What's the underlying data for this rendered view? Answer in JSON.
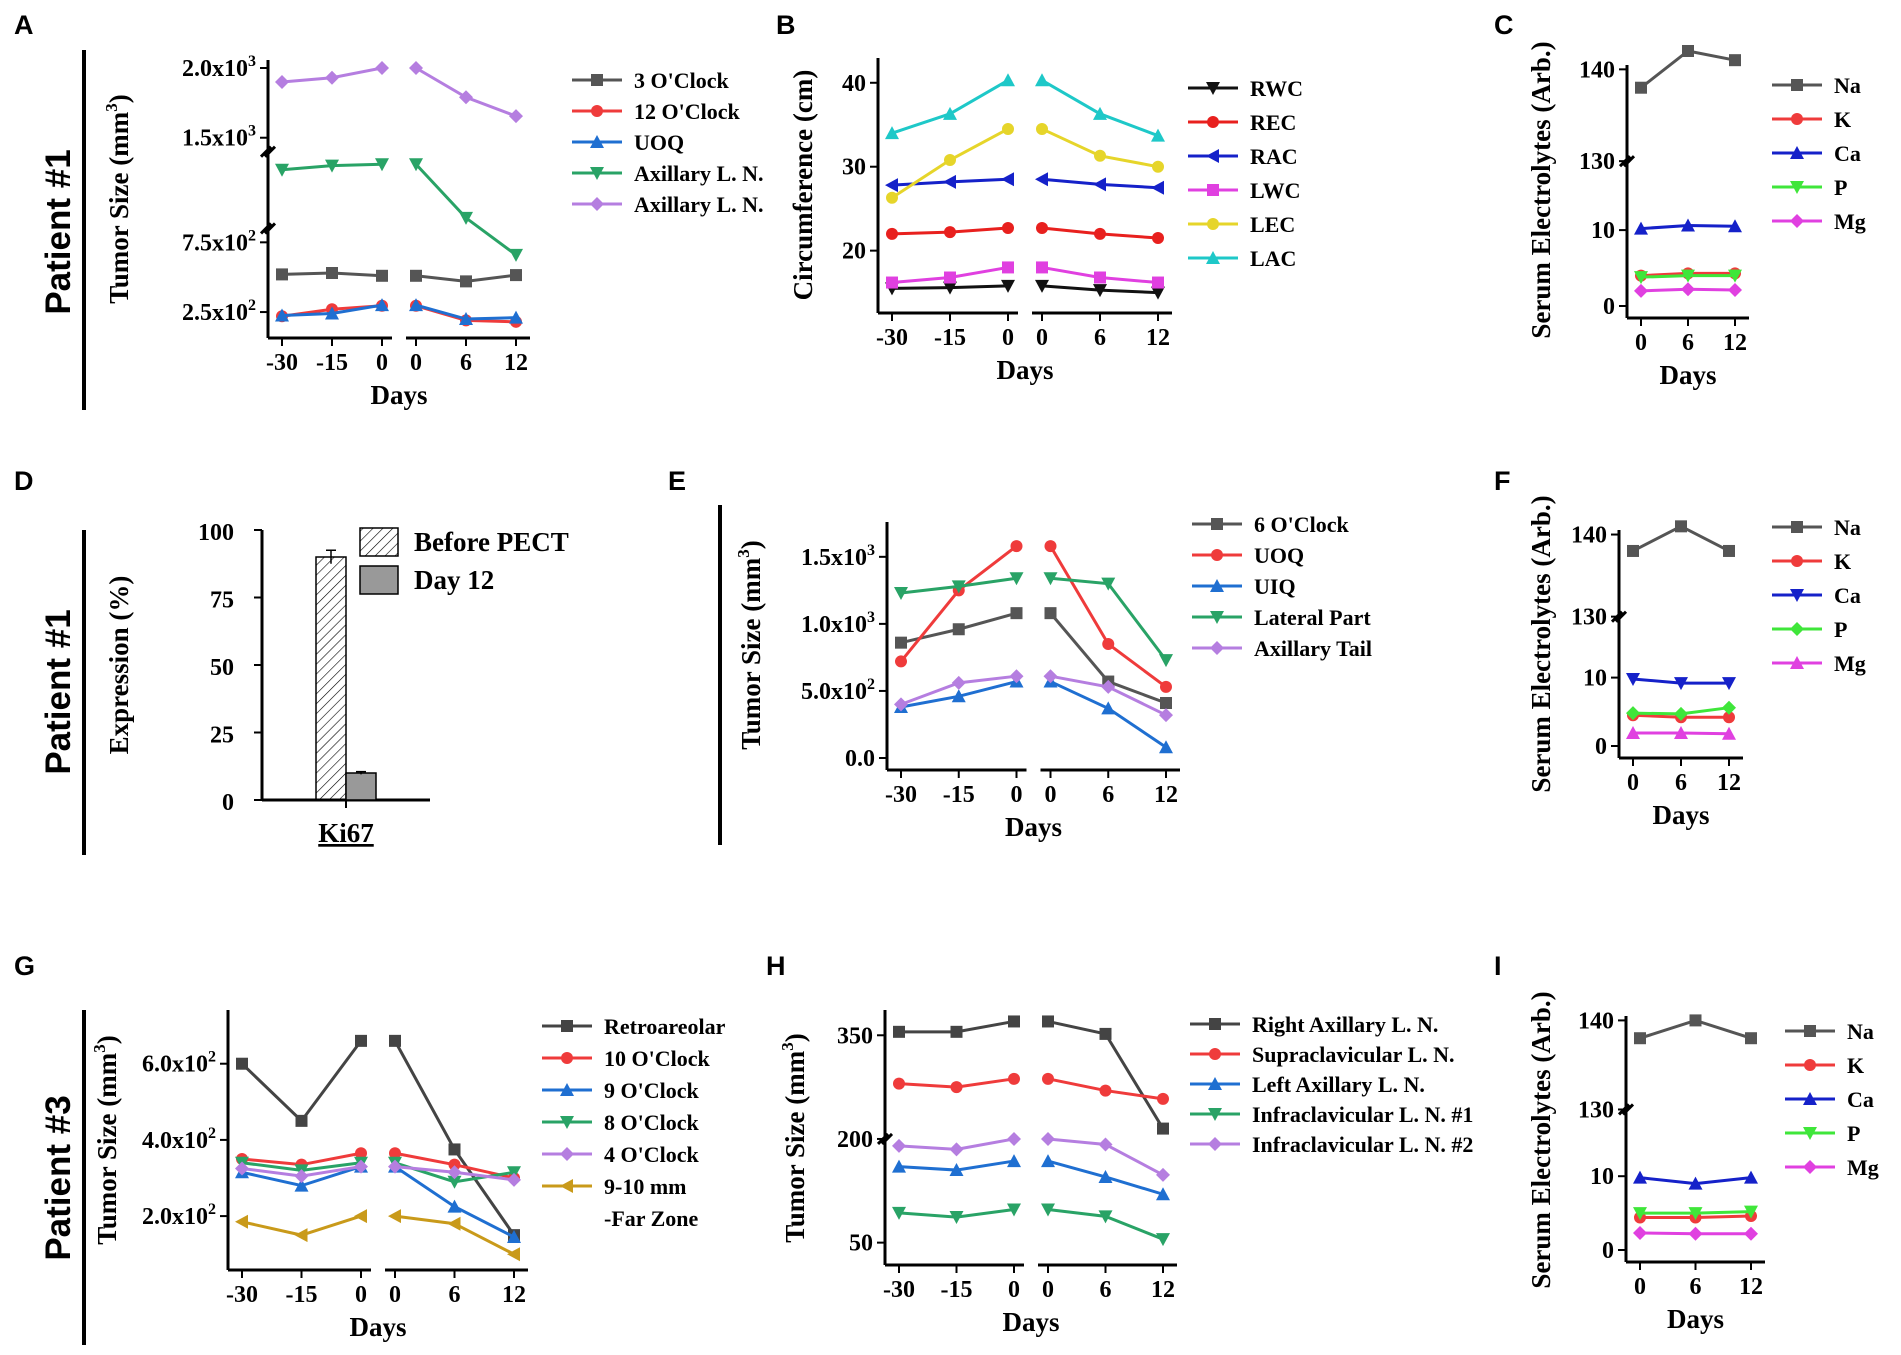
{
  "figure": {
    "rows": [
      {
        "patient": "Patient #1"
      },
      {
        "patient": "Patient #1"
      },
      {
        "patient": "Patient #3"
      }
    ]
  },
  "chart_data": [
    {
      "panel": "A",
      "type": "line",
      "xlabel": "Days",
      "ylabel": "Tumor Size (mm³)",
      "ylim": [
        150,
        2000
      ],
      "yticks": [
        250,
        750,
        1500,
        2000
      ],
      "ytick_labels": [
        "2.5x10²",
        "7.5x10²",
        "1.5x10³",
        "2.0x10³"
      ],
      "ybreaks": [
        1400,
        850
      ],
      "x_left": [
        -30,
        -15,
        0
      ],
      "x_right": [
        0,
        6,
        12
      ],
      "xtick_labels_left": [
        "-30",
        "-15",
        "0"
      ],
      "xtick_labels_right": [
        "0",
        "6",
        "12"
      ],
      "series": [
        {
          "name": "3 O'Clock",
          "color": "#555555",
          "marker": "square",
          "left": [
            520,
            530,
            510
          ],
          "right": [
            510,
            470,
            515
          ]
        },
        {
          "name": "12 O'Clock",
          "color": "#ef3b3b",
          "marker": "circle",
          "left": [
            220,
            270,
            295
          ],
          "right": [
            295,
            190,
            180
          ]
        },
        {
          "name": "UOQ",
          "color": "#1f6fd1",
          "marker": "triangle-up",
          "left": [
            225,
            240,
            300
          ],
          "right": [
            300,
            200,
            210
          ]
        },
        {
          "name": "Axillary L. N.",
          "color": "#29a366",
          "marker": "triangle-down",
          "left": [
            1270,
            1300,
            1310
          ],
          "right": [
            1310,
            925,
            660
          ]
        },
        {
          "name": "Axillary L. N.",
          "color": "#b57ee0",
          "marker": "diamond",
          "left": [
            1900,
            1930,
            2000
          ],
          "right": [
            2000,
            1790,
            1655
          ]
        }
      ]
    },
    {
      "panel": "B",
      "type": "line",
      "xlabel": "Days",
      "ylabel": "Circumference (cm)",
      "ylim": [
        14,
        42
      ],
      "yticks": [
        20,
        30,
        40
      ],
      "ytick_labels": [
        "20",
        "30",
        "40"
      ],
      "x_left": [
        -30,
        -15,
        0
      ],
      "x_right": [
        0,
        6,
        12
      ],
      "xtick_labels_left": [
        "-30",
        "-15",
        "0"
      ],
      "xtick_labels_right": [
        "0",
        "6",
        "12"
      ],
      "series": [
        {
          "name": "RWC",
          "color": "#111111",
          "marker": "triangle-down",
          "left": [
            15.5,
            15.6,
            15.8
          ],
          "right": [
            15.8,
            15.3,
            15.0
          ]
        },
        {
          "name": "REC",
          "color": "#e8201e",
          "marker": "circle",
          "left": [
            22.0,
            22.2,
            22.7
          ],
          "right": [
            22.7,
            22.0,
            21.5
          ]
        },
        {
          "name": "RAC",
          "color": "#1521c9",
          "marker": "triangle-left",
          "left": [
            27.8,
            28.2,
            28.5
          ],
          "right": [
            28.5,
            27.9,
            27.5
          ]
        },
        {
          "name": "LWC",
          "color": "#e040e0",
          "marker": "square",
          "left": [
            16.2,
            16.8,
            18.0
          ],
          "right": [
            18.0,
            16.8,
            16.2
          ]
        },
        {
          "name": "LEC",
          "color": "#e6d52a",
          "marker": "circle",
          "left": [
            26.3,
            30.8,
            34.5
          ],
          "right": [
            34.5,
            31.3,
            30.0
          ]
        },
        {
          "name": "LAC",
          "color": "#1ec8c8",
          "marker": "triangle-up",
          "left": [
            34.0,
            36.3,
            40.3
          ],
          "right": [
            40.3,
            36.3,
            33.7
          ]
        }
      ]
    },
    {
      "panel": "C",
      "type": "line",
      "xlabel": "Days",
      "ylabel": "Serum Electrolytes (Arb.)",
      "ylim": [
        0,
        146
      ],
      "yticks": [
        0,
        10,
        130,
        140
      ],
      "ytick_labels": [
        "0",
        "10",
        "130",
        "140"
      ],
      "ybreaks": [
        130
      ],
      "x": [
        0,
        6,
        12
      ],
      "xtick_labels": [
        "0",
        "6",
        "12"
      ],
      "series": [
        {
          "name": "Na",
          "color": "#555555",
          "marker": "square",
          "values": [
            138,
            142,
            141
          ]
        },
        {
          "name": "K",
          "color": "#ef3b3b",
          "marker": "circle",
          "values": [
            4.0,
            4.3,
            4.3
          ]
        },
        {
          "name": "Ca",
          "color": "#1521c9",
          "marker": "triangle-up",
          "values": [
            10.2,
            10.6,
            10.5
          ]
        },
        {
          "name": "P",
          "color": "#3fe63a",
          "marker": "triangle-down",
          "values": [
            3.8,
            4.0,
            4.0
          ]
        },
        {
          "name": "Mg",
          "color": "#e040e0",
          "marker": "diamond",
          "values": [
            2.0,
            2.2,
            2.1
          ]
        }
      ]
    },
    {
      "panel": "D",
      "type": "bar",
      "ylabel": "Expression (%)",
      "ylim": [
        0,
        100
      ],
      "yticks": [
        0,
        25,
        50,
        75,
        100
      ],
      "ytick_labels": [
        "0",
        "25",
        "50",
        "75",
        "100"
      ],
      "categories": [
        "Ki67"
      ],
      "series": [
        {
          "name": "Before PECT",
          "pattern": "hatched",
          "values": [
            90
          ],
          "error": [
            2.5
          ]
        },
        {
          "name": "Day 12",
          "pattern": "gray",
          "values": [
            10
          ],
          "error": [
            0.5
          ]
        }
      ]
    },
    {
      "panel": "E",
      "type": "line",
      "xlabel": "Days",
      "ylabel": "Tumor Size (mm³)",
      "ylim": [
        0,
        1700
      ],
      "yticks": [
        0,
        500,
        1000,
        1500
      ],
      "ytick_labels": [
        "0.0",
        "5.0x10²",
        "1.0x10³",
        "1.5x10³"
      ],
      "x_left": [
        -30,
        -15,
        0
      ],
      "x_right": [
        0,
        6,
        12
      ],
      "xtick_labels_left": [
        "-30",
        "-15",
        "0"
      ],
      "xtick_labels_right": [
        "0",
        "6",
        "12"
      ],
      "series": [
        {
          "name": "6 O'Clock",
          "color": "#555555",
          "marker": "square",
          "left": [
            860,
            960,
            1080
          ],
          "right": [
            1080,
            570,
            410
          ]
        },
        {
          "name": "UOQ",
          "color": "#ef3b3b",
          "marker": "circle",
          "left": [
            720,
            1250,
            1580
          ],
          "right": [
            1580,
            850,
            530
          ]
        },
        {
          "name": "UIQ",
          "color": "#1f6fd1",
          "marker": "triangle-up",
          "left": [
            380,
            460,
            570
          ],
          "right": [
            570,
            370,
            80
          ]
        },
        {
          "name": "Lateral Part",
          "color": "#29a366",
          "marker": "triangle-down",
          "left": [
            1230,
            1280,
            1340
          ],
          "right": [
            1340,
            1300,
            730
          ]
        },
        {
          "name": "Axillary Tail",
          "color": "#b57ee0",
          "marker": "diamond",
          "left": [
            400,
            560,
            610
          ],
          "right": [
            610,
            530,
            320
          ]
        }
      ]
    },
    {
      "panel": "F",
      "type": "line",
      "xlabel": "Days",
      "ylabel": "Serum Electrolytes (Arb.)",
      "ylim": [
        0,
        146
      ],
      "yticks": [
        0,
        10,
        130,
        140
      ],
      "ytick_labels": [
        "0",
        "10",
        "130",
        "140"
      ],
      "ybreaks": [
        130
      ],
      "x": [
        0,
        6,
        12
      ],
      "xtick_labels": [
        "0",
        "6",
        "12"
      ],
      "series": [
        {
          "name": "Na",
          "color": "#555555",
          "marker": "square",
          "values": [
            138,
            141,
            138
          ]
        },
        {
          "name": "K",
          "color": "#ef3b3b",
          "marker": "circle",
          "values": [
            4.5,
            4.2,
            4.2
          ]
        },
        {
          "name": "Ca",
          "color": "#1521c9",
          "marker": "triangle-down",
          "values": [
            9.8,
            9.2,
            9.2
          ]
        },
        {
          "name": "P",
          "color": "#3fe63a",
          "marker": "diamond",
          "values": [
            4.8,
            4.7,
            5.6
          ]
        },
        {
          "name": "Mg",
          "color": "#e040e0",
          "marker": "triangle-up",
          "values": [
            1.9,
            1.9,
            1.8
          ]
        }
      ]
    },
    {
      "panel": "G",
      "type": "line",
      "xlabel": "Days",
      "ylabel": "Tumor Size (mm³)",
      "ylim": [
        90,
        720
      ],
      "yticks": [
        200,
        400,
        600
      ],
      "ytick_labels": [
        "2.0x10²",
        "4.0x10²",
        "6.0x10²"
      ],
      "x_left": [
        -30,
        -15,
        0
      ],
      "x_right": [
        0,
        6,
        12
      ],
      "xtick_labels_left": [
        "-30",
        "-15",
        "0"
      ],
      "xtick_labels_right": [
        "0",
        "6",
        "12"
      ],
      "series": [
        {
          "name": "Retroareolar",
          "color": "#444444",
          "marker": "square",
          "left": [
            600,
            450,
            660
          ],
          "right": [
            660,
            375,
            150
          ]
        },
        {
          "name": "10 O'Clock",
          "color": "#ef3b3b",
          "marker": "circle",
          "left": [
            350,
            335,
            365
          ],
          "right": [
            365,
            335,
            300
          ]
        },
        {
          "name": "9 O'Clock",
          "color": "#1f6fd1",
          "marker": "triangle-up",
          "left": [
            315,
            280,
            330
          ],
          "right": [
            330,
            225,
            145
          ]
        },
        {
          "name": "8 O'Clock",
          "color": "#29a366",
          "marker": "triangle-down",
          "left": [
            340,
            320,
            340
          ],
          "right": [
            340,
            290,
            315
          ]
        },
        {
          "name": "4 O'Clock",
          "color": "#b57ee0",
          "marker": "diamond",
          "left": [
            325,
            305,
            330
          ],
          "right": [
            330,
            315,
            295
          ]
        },
        {
          "name": "9-10 mm -Far Zone",
          "legend_lines": [
            "9-10 mm",
            "-Far Zone"
          ],
          "color": "#c99a1a",
          "marker": "triangle-left",
          "left": [
            185,
            150,
            200
          ],
          "right": [
            200,
            180,
            100
          ]
        }
      ]
    },
    {
      "panel": "H",
      "type": "line",
      "xlabel": "Days",
      "ylabel": "Tumor Size (mm³)",
      "ylim": [
        35,
        375
      ],
      "yticks": [
        50,
        200,
        350
      ],
      "ytick_labels": [
        "50",
        "200",
        "350"
      ],
      "ybreaks": [
        200
      ],
      "x_left": [
        -30,
        -15,
        0
      ],
      "x_right": [
        0,
        6,
        12
      ],
      "xtick_labels_left": [
        "-30",
        "-15",
        "0"
      ],
      "xtick_labels_right": [
        "0",
        "6",
        "12"
      ],
      "series": [
        {
          "name": "Right Axillary L. N.",
          "color": "#444444",
          "marker": "square",
          "left": [
            355,
            355,
            370
          ],
          "right": [
            370,
            352,
            215
          ]
        },
        {
          "name": "Supraclavicular L. N.",
          "color": "#ef3b3b",
          "marker": "circle",
          "left": [
            280,
            275,
            287
          ],
          "right": [
            287,
            270,
            258
          ]
        },
        {
          "name": "Left Axillary L. N.",
          "color": "#1f6fd1",
          "marker": "triangle-up",
          "left": [
            160,
            155,
            168
          ],
          "right": [
            168,
            145,
            120
          ]
        },
        {
          "name": "Infraclavicular L. N. #1",
          "color": "#29a366",
          "marker": "triangle-down",
          "left": [
            93,
            87,
            98
          ],
          "right": [
            98,
            88,
            55
          ]
        },
        {
          "name": "Infraclavicular L. N. #2",
          "color": "#b57ee0",
          "marker": "diamond",
          "left": [
            190,
            185,
            200
          ],
          "right": [
            200,
            192,
            148
          ]
        }
      ]
    },
    {
      "panel": "I",
      "type": "line",
      "xlabel": "Days",
      "ylabel": "Serum Electrolytes (Arb.)",
      "ylim": [
        0,
        146
      ],
      "yticks": [
        0,
        10,
        130,
        140
      ],
      "ytick_labels": [
        "0",
        "10",
        "130",
        "140"
      ],
      "ybreaks": [
        130
      ],
      "x": [
        0,
        6,
        12
      ],
      "xtick_labels": [
        "0",
        "6",
        "12"
      ],
      "series": [
        {
          "name": "Na",
          "color": "#555555",
          "marker": "square",
          "values": [
            138,
            140,
            138
          ]
        },
        {
          "name": "K",
          "color": "#ef3b3b",
          "marker": "circle",
          "values": [
            4.4,
            4.4,
            4.6
          ]
        },
        {
          "name": "Ca",
          "color": "#1521c9",
          "marker": "triangle-up",
          "values": [
            9.8,
            9.0,
            9.8
          ]
        },
        {
          "name": "P",
          "color": "#3fe63a",
          "marker": "triangle-down",
          "values": [
            5.0,
            5.0,
            5.2
          ]
        },
        {
          "name": "Mg",
          "color": "#e040e0",
          "marker": "diamond",
          "values": [
            2.3,
            2.2,
            2.2
          ]
        }
      ]
    }
  ]
}
